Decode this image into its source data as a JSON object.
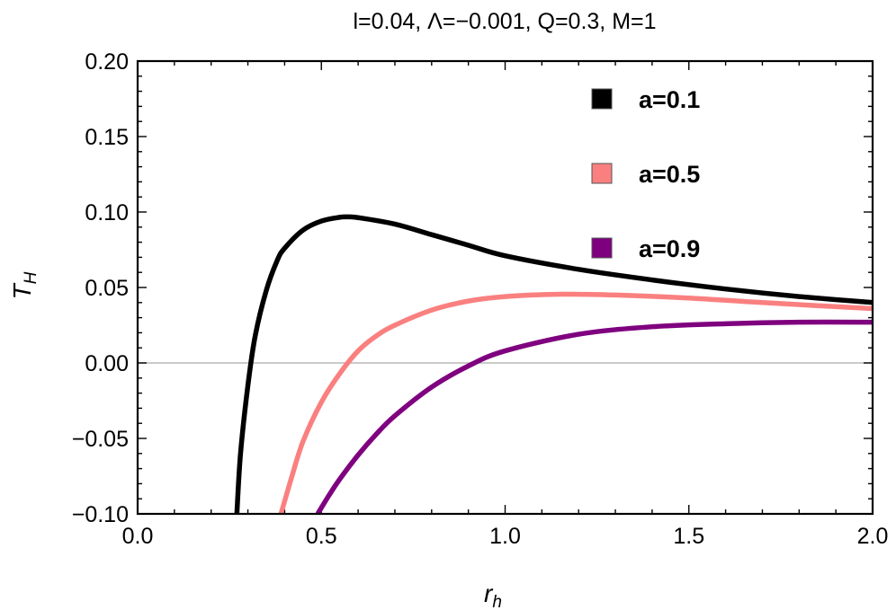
{
  "chart_data": {
    "type": "line",
    "title": "l=0.04,   Λ=−0.001, Q=0.3, M=1",
    "xlabel": {
      "base": "r",
      "sub": "h"
    },
    "ylabel": {
      "base": "T",
      "sub": "H"
    },
    "xlim": [
      0.0,
      2.0
    ],
    "ylim": [
      -0.1,
      0.2
    ],
    "xticks": [
      0.0,
      0.5,
      1.0,
      1.5,
      2.0
    ],
    "xtick_labels": [
      "0.0",
      "0.5",
      "1.0",
      "1.5",
      "2.0"
    ],
    "yticks": [
      -0.1,
      -0.05,
      0.0,
      0.05,
      0.1,
      0.15,
      0.2
    ],
    "ytick_labels": [
      "−0.10",
      "−0.05",
      "0.00",
      "0.05",
      "0.10",
      "0.15",
      "0.20"
    ],
    "grid": false,
    "zero_line": true,
    "legend_position": "top-right",
    "series": [
      {
        "name": "a=0.1",
        "color": "#000000",
        "x": [
          0.27,
          0.28,
          0.3,
          0.32,
          0.35,
          0.38,
          0.4,
          0.45,
          0.5,
          0.55,
          0.57,
          0.6,
          0.7,
          0.8,
          0.9,
          1.0,
          1.2,
          1.4,
          1.6,
          1.8,
          2.0
        ],
        "y": [
          -0.1,
          -0.06,
          -0.015,
          0.018,
          0.048,
          0.068,
          0.076,
          0.088,
          0.094,
          0.0965,
          0.0968,
          0.0963,
          0.092,
          0.085,
          0.078,
          0.071,
          0.062,
          0.055,
          0.049,
          0.044,
          0.04
        ]
      },
      {
        "name": "a=0.5",
        "color": "#fa8080",
        "x": [
          0.39,
          0.42,
          0.45,
          0.5,
          0.55,
          0.6,
          0.65,
          0.7,
          0.8,
          0.9,
          1.0,
          1.15,
          1.3,
          1.5,
          1.7,
          2.0
        ],
        "y": [
          -0.1,
          -0.075,
          -0.052,
          -0.026,
          -0.007,
          0.008,
          0.018,
          0.025,
          0.035,
          0.041,
          0.044,
          0.0455,
          0.045,
          0.043,
          0.04,
          0.036
        ]
      },
      {
        "name": "a=0.9",
        "color": "#7f007f",
        "x": [
          0.49,
          0.52,
          0.55,
          0.6,
          0.65,
          0.7,
          0.8,
          0.9,
          1.0,
          1.2,
          1.4,
          1.6,
          1.8,
          2.0
        ],
        "y": [
          -0.1,
          -0.088,
          -0.077,
          -0.061,
          -0.047,
          -0.035,
          -0.016,
          -0.002,
          0.008,
          0.019,
          0.024,
          0.026,
          0.027,
          0.027
        ]
      }
    ]
  }
}
